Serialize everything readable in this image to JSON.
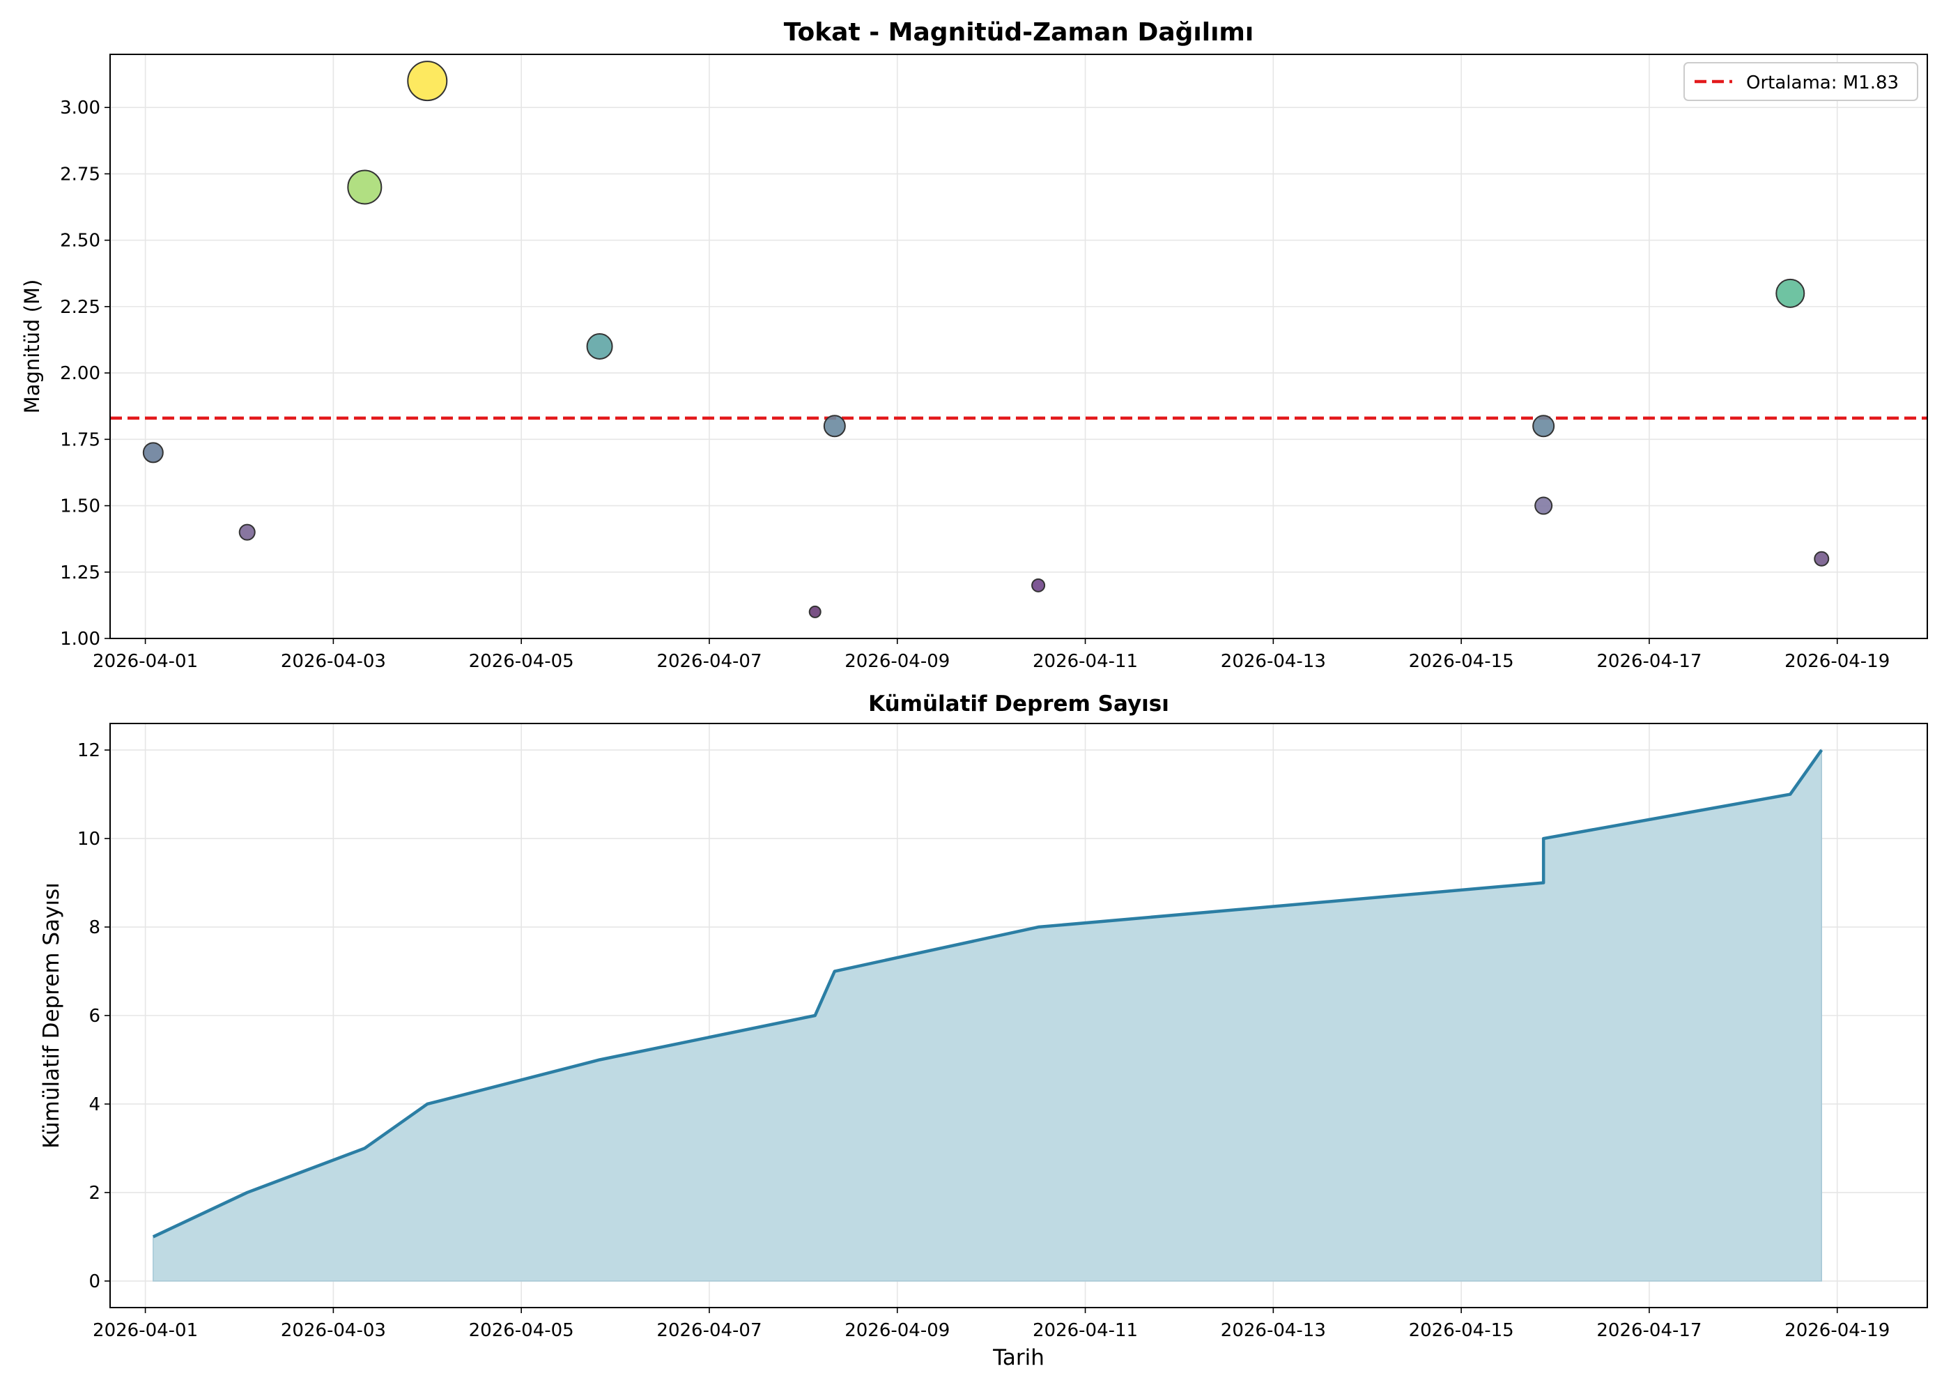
{
  "chart_data": [
    {
      "type": "scatter",
      "title": "Tokat - Magnitüd-Zaman Dağılımı",
      "xlabel": "",
      "ylabel": "Magnitüd (M)",
      "x_ticks": [
        "2026-04-01",
        "2026-04-03",
        "2026-04-05",
        "2026-04-07",
        "2026-04-09",
        "2026-04-11",
        "2026-04-13",
        "2026-04-15",
        "2026-04-17",
        "2026-04-19"
      ],
      "y_ticks": [
        "1.00",
        "1.25",
        "1.50",
        "1.75",
        "2.00",
        "2.25",
        "2.50",
        "2.75",
        "3.00"
      ],
      "ylim": [
        1.0,
        3.2
      ],
      "xlim": [
        "2026-03-31T15:00",
        "2026-04-19T23:00"
      ],
      "grid": true,
      "legend_position": "top-right",
      "points": [
        {
          "x": "2026-04-01T02:00",
          "y": 1.7,
          "color": "#6a7f9b"
        },
        {
          "x": "2026-04-02T02:00",
          "y": 1.4,
          "color": "#7b6796"
        },
        {
          "x": "2026-04-03T08:00",
          "y": 2.7,
          "color": "#a8db74"
        },
        {
          "x": "2026-04-04T00:00",
          "y": 3.1,
          "color": "#fde74f"
        },
        {
          "x": "2026-04-05T20:00",
          "y": 2.1,
          "color": "#5fa5a5"
        },
        {
          "x": "2026-04-08T03:00",
          "y": 1.1,
          "color": "#6a3e78"
        },
        {
          "x": "2026-04-08T08:00",
          "y": 1.8,
          "color": "#6a8aa0"
        },
        {
          "x": "2026-04-10T12:00",
          "y": 1.2,
          "color": "#70468a"
        },
        {
          "x": "2026-04-15T21:00",
          "y": 1.8,
          "color": "#6a8aa0"
        },
        {
          "x": "2026-04-15T21:00",
          "y": 1.5,
          "color": "#8179a3"
        },
        {
          "x": "2026-04-18T12:00",
          "y": 2.3,
          "color": "#5fbd98"
        },
        {
          "x": "2026-04-18T20:00",
          "y": 1.3,
          "color": "#755b8c"
        }
      ],
      "mean_line": {
        "y": 1.83,
        "label": "Ortalama: M1.83",
        "color": "#e31a1c"
      }
    },
    {
      "type": "area",
      "title": "Kümülatif Deprem Sayısı",
      "xlabel": "Tarih",
      "ylabel": "Kümülatif Deprem Sayısı",
      "x_ticks": [
        "2026-04-01",
        "2026-04-03",
        "2026-04-05",
        "2026-04-07",
        "2026-04-09",
        "2026-04-11",
        "2026-04-13",
        "2026-04-15",
        "2026-04-17",
        "2026-04-19"
      ],
      "y_ticks": [
        "0",
        "2",
        "4",
        "6",
        "8",
        "10",
        "12"
      ],
      "ylim": [
        -0.6,
        12.6
      ],
      "xlim": [
        "2026-03-31T15:00",
        "2026-04-19T23:00"
      ],
      "grid": true,
      "line_color": "#2b7ea4",
      "fill_color": "#bfdae3",
      "points": [
        {
          "x": "2026-04-01T02:00",
          "y": 1
        },
        {
          "x": "2026-04-02T02:00",
          "y": 2
        },
        {
          "x": "2026-04-03T08:00",
          "y": 3
        },
        {
          "x": "2026-04-04T00:00",
          "y": 4
        },
        {
          "x": "2026-04-05T20:00",
          "y": 5
        },
        {
          "x": "2026-04-08T03:00",
          "y": 6
        },
        {
          "x": "2026-04-08T08:00",
          "y": 7
        },
        {
          "x": "2026-04-10T12:00",
          "y": 8
        },
        {
          "x": "2026-04-15T21:00",
          "y": 9
        },
        {
          "x": "2026-04-15T21:00",
          "y": 10
        },
        {
          "x": "2026-04-18T12:00",
          "y": 11
        },
        {
          "x": "2026-04-18T20:00",
          "y": 12
        }
      ]
    }
  ]
}
